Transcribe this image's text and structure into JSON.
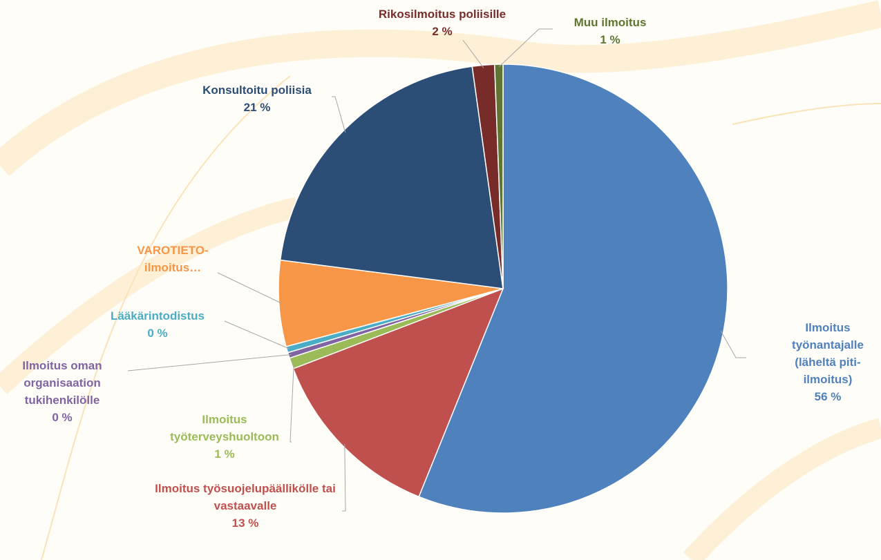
{
  "chart_data": {
    "type": "pie",
    "categories": [
      "Ilmoitus työnantajalle (läheltä piti-ilmoitus)",
      "Ilmoitus työsuojelupäällikölle tai vastaavalle",
      "Ilmoitus työterveyshuoltoon",
      "Ilmoitus oman organisaation tukihenkilölle",
      "Lääkärintodistus",
      "VAROTIETO-ilmoitus…",
      "Konsultoitu poliisia",
      "Rikosilmoitus poliisille",
      "Muu ilmoitus"
    ],
    "values": [
      56.2,
      13.1,
      0.8,
      0.4,
      0.45,
      6.2,
      20.8,
      1.6,
      0.6
    ],
    "value_labels": [
      "56 %",
      "13 %",
      "1 %",
      "0 %",
      "0 %",
      null,
      "21 %",
      "2 %",
      "1 %"
    ],
    "colors": [
      "#4f81bd",
      "#c0504d",
      "#9bbb59",
      "#8064a2",
      "#4bacc6",
      "#f79646",
      "#2c4d75",
      "#772c2a",
      "#5f7530"
    ]
  }
}
